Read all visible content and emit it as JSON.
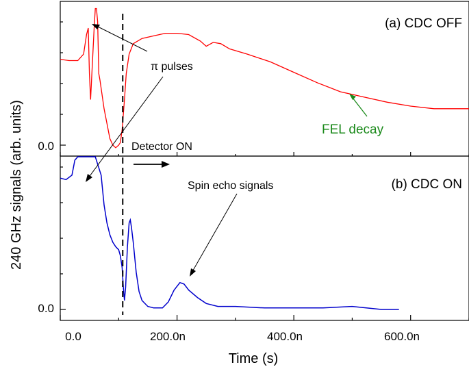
{
  "chart_data": [
    {
      "type": "line",
      "panel_label": "(a) CDC OFF",
      "xlabel": "Time (s)",
      "ylabel": "240 GHz signals (arb. units)",
      "xlim": [
        0,
        700
      ],
      "ylim": [
        -0.1,
        1.0
      ],
      "x_ticks": [
        0,
        200,
        400,
        600
      ],
      "x_tick_labels": [
        "0.0",
        "200.0n",
        "400.0n",
        "600.0n"
      ],
      "y_tick_label": "0.0",
      "grid": false,
      "series": [
        {
          "color": "#ff0000",
          "x": [
            0,
            15,
            30,
            40,
            45,
            48,
            50,
            52,
            58,
            60,
            62,
            64,
            66,
            68,
            75,
            85,
            90,
            95,
            100,
            103,
            106,
            110,
            113,
            118,
            125,
            140,
            160,
            180,
            200,
            220,
            240,
            250,
            262,
            275,
            290,
            320,
            360,
            400,
            440,
            480,
            520,
            560,
            600,
            640,
            680,
            700
          ],
          "y": [
            0.66,
            0.65,
            0.65,
            0.7,
            0.85,
            0.9,
            0.55,
            0.35,
            0.9,
            1.05,
            1.05,
            0.95,
            0.55,
            0.5,
            0.28,
            0.05,
            0.0,
            -0.02,
            0.0,
            0.02,
            0.12,
            0.35,
            0.55,
            0.7,
            0.78,
            0.82,
            0.84,
            0.86,
            0.86,
            0.85,
            0.8,
            0.76,
            0.79,
            0.78,
            0.74,
            0.7,
            0.64,
            0.56,
            0.48,
            0.41,
            0.37,
            0.33,
            0.3,
            0.28,
            0.28,
            0.28
          ]
        }
      ],
      "annotations": [
        "π pulses",
        "FEL decay",
        "Detector ON"
      ]
    },
    {
      "type": "line",
      "panel_label": "(b) CDC ON",
      "xlim": [
        0,
        700
      ],
      "ylim": [
        -0.05,
        1.0
      ],
      "y_tick_label": "0.0",
      "grid": false,
      "series": [
        {
          "color": "#0000cc",
          "x": [
            0,
            10,
            20,
            25,
            30,
            40,
            60,
            70,
            75,
            80,
            85,
            90,
            95,
            100,
            103,
            106,
            108,
            110,
            112,
            115,
            118,
            120,
            122,
            125,
            130,
            135,
            140,
            150,
            160,
            175,
            185,
            195,
            205,
            212,
            220,
            235,
            250,
            270,
            300,
            350,
            400,
            450,
            500,
            550,
            580
          ],
          "y": [
            0.88,
            0.87,
            0.9,
            1.0,
            1.05,
            1.05,
            1.05,
            0.9,
            0.7,
            0.58,
            0.5,
            0.45,
            0.42,
            0.4,
            0.36,
            0.28,
            0.15,
            0.06,
            0.15,
            0.42,
            0.58,
            0.6,
            0.55,
            0.45,
            0.25,
            0.12,
            0.06,
            0.02,
            0.01,
            0.01,
            0.05,
            0.13,
            0.18,
            0.17,
            0.13,
            0.08,
            0.04,
            0.02,
            0.02,
            0.01,
            0.01,
            0.01,
            0.02,
            0.0,
            0.0
          ]
        }
      ],
      "annotations": [
        "Spin echo signals"
      ]
    }
  ]
}
